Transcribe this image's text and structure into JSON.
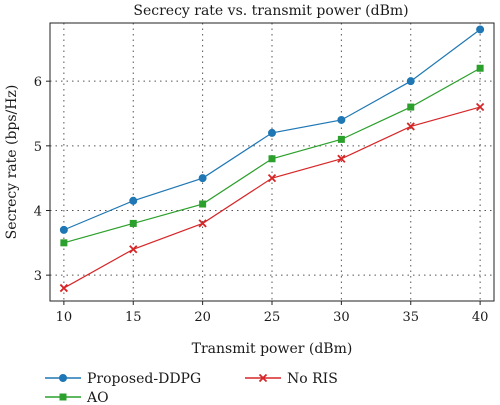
{
  "chart_data": {
    "type": "line",
    "title": "Secrecy rate vs. transmit power (dBm)",
    "xlabel": "Transmit power (dBm)",
    "ylabel": "Secrecy rate (bps/Hz)",
    "x": [
      10,
      15,
      20,
      25,
      30,
      35,
      40
    ],
    "xlim": [
      9,
      41
    ],
    "ylim": [
      2.6,
      6.9
    ],
    "xticks": [
      10,
      15,
      20,
      25,
      30,
      35,
      40
    ],
    "yticks": [
      3,
      4,
      5,
      6
    ],
    "grid": true,
    "legend_position": "bottom",
    "series": [
      {
        "name": "Proposed-DDPG",
        "color": "#1f77b4",
        "marker": "circle",
        "values": [
          3.7,
          4.15,
          4.5,
          5.2,
          5.4,
          6.0,
          6.8
        ]
      },
      {
        "name": "AO",
        "color": "#2ca02c",
        "marker": "square",
        "values": [
          3.5,
          3.8,
          4.1,
          4.8,
          5.1,
          5.6,
          6.2
        ]
      },
      {
        "name": "No RIS",
        "color": "#d62728",
        "marker": "x",
        "values": [
          2.8,
          3.4,
          3.8,
          4.5,
          4.8,
          5.3,
          5.6
        ]
      }
    ]
  }
}
